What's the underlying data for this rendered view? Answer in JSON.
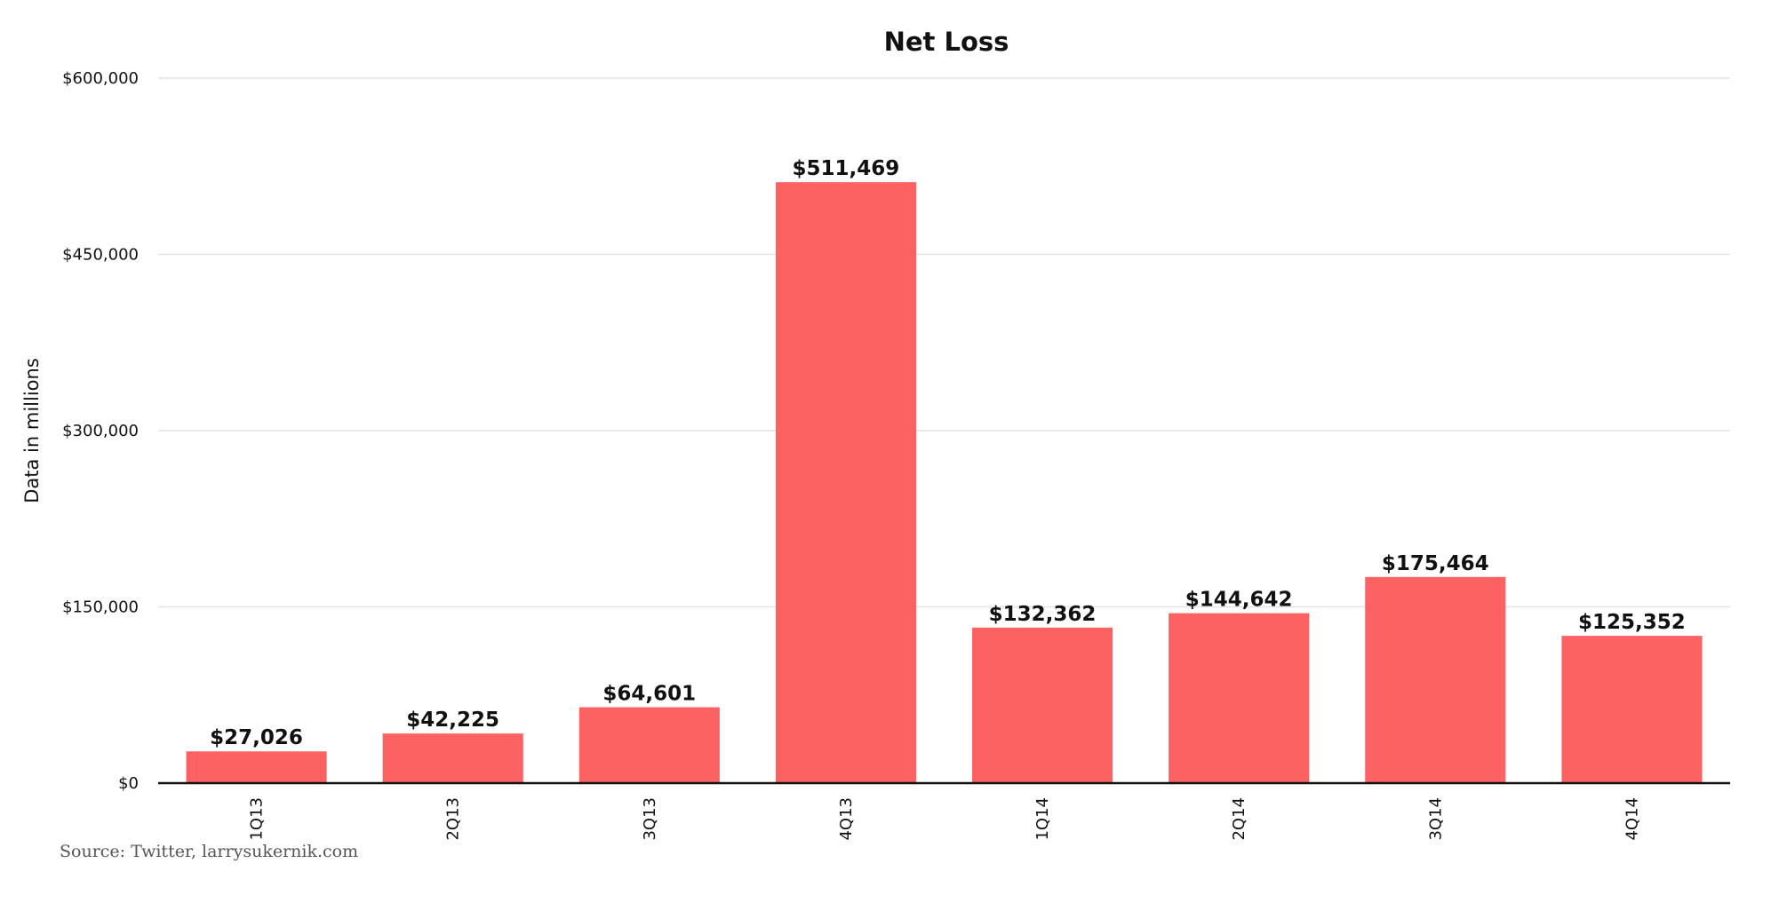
{
  "chart_data": {
    "type": "bar",
    "title": "Net Loss",
    "xlabel": "",
    "ylabel": "Data in millions",
    "categories": [
      "1Q13",
      "2Q13",
      "3Q13",
      "4Q13",
      "1Q14",
      "2Q14",
      "3Q14",
      "4Q14"
    ],
    "values": [
      27026,
      42225,
      64601,
      511469,
      132362,
      144642,
      175464,
      125352
    ],
    "data_labels": [
      "$27,026",
      "$42,225",
      "$64,601",
      "$511,469",
      "$132,362",
      "$144,642",
      "$175,464",
      "$125,352"
    ],
    "ylim": [
      0,
      600000
    ],
    "yticks": [
      0,
      150000,
      300000,
      450000,
      600000
    ],
    "ytick_labels": [
      "$0",
      "$150,000",
      "$300,000",
      "$450,000",
      "$600,000"
    ],
    "grid": true,
    "bar_color": "#fc6262"
  },
  "source": "Source: Twitter, larrysukernik.com"
}
